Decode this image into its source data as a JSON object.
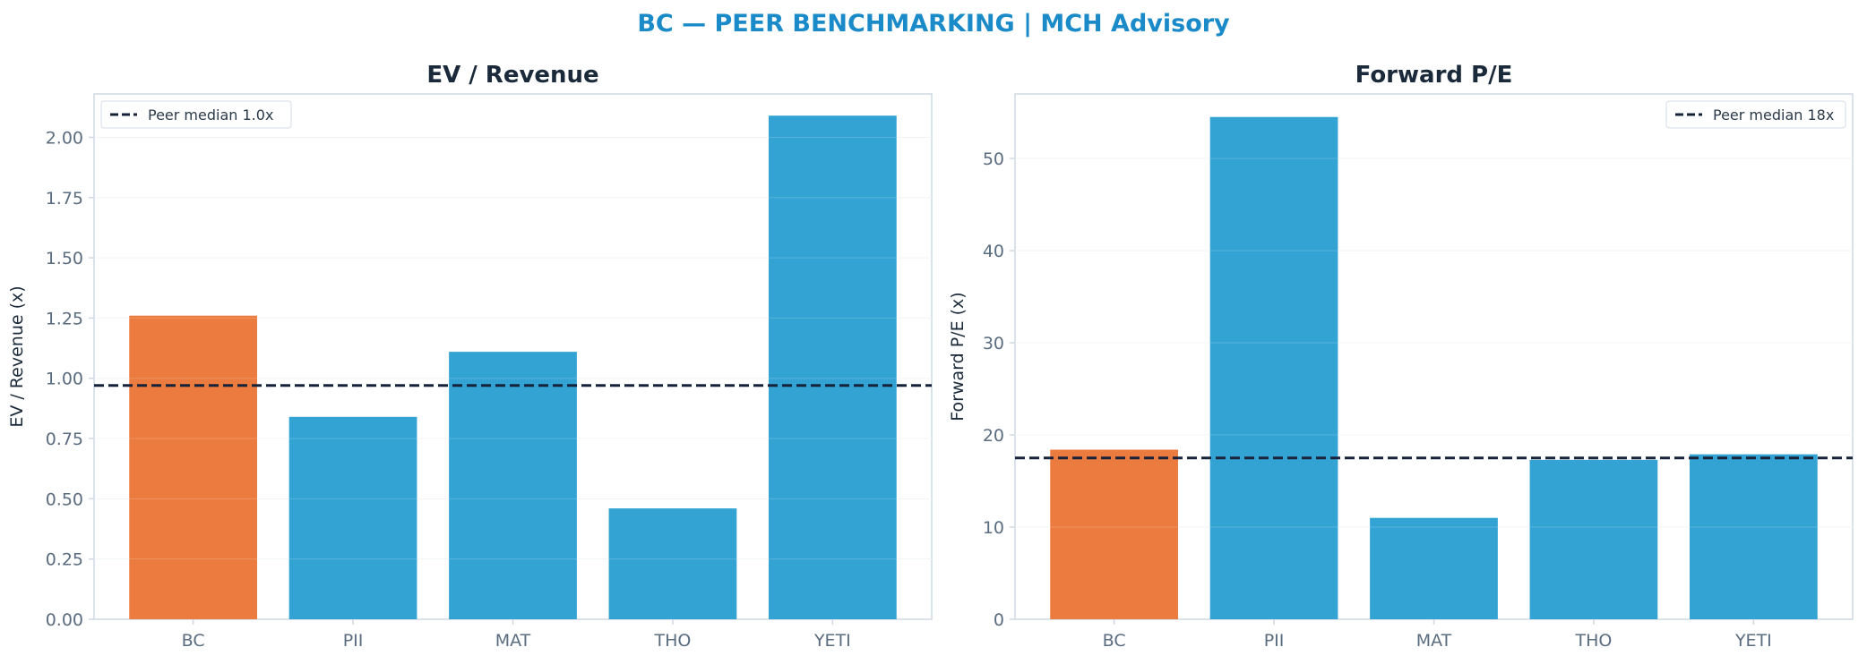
{
  "title": "BC — PEER BENCHMARKING | MCH Advisory",
  "colors": {
    "title": "#1a8bc8",
    "highlight": "#ec7b3f",
    "peer": "#33a3d4",
    "median_line": "#17233a",
    "axes": "#cfd8e2",
    "text": "#1b2a3a",
    "tick": "#5a6c80"
  },
  "chart_data": [
    {
      "type": "bar",
      "title": "EV / Revenue",
      "xlabel": "",
      "ylabel": "EV / Revenue (x)",
      "categories": [
        "BC",
        "PII",
        "MAT",
        "THO",
        "YETI"
      ],
      "values": [
        1.26,
        0.84,
        1.11,
        0.46,
        2.09
      ],
      "highlight_category": "BC",
      "ylim": [
        0,
        2.18
      ],
      "yticks": [
        "0.00",
        "0.25",
        "0.50",
        "0.75",
        "1.00",
        "1.25",
        "1.50",
        "1.75",
        "2.00"
      ],
      "ytick_values": [
        0,
        0.25,
        0.5,
        0.75,
        1.0,
        1.25,
        1.5,
        1.75,
        2.0
      ],
      "reference_line": {
        "label": "Peer median 1.0x",
        "value": 0.97,
        "style": "dashed"
      },
      "legend_position": "top-left",
      "grid": true
    },
    {
      "type": "bar",
      "title": "Forward P/E",
      "xlabel": "",
      "ylabel": "Forward P/E (x)",
      "categories": [
        "BC",
        "PII",
        "MAT",
        "THO",
        "YETI"
      ],
      "values": [
        18.4,
        54.5,
        11.0,
        17.3,
        17.9
      ],
      "highlight_category": "BC",
      "ylim": [
        0,
        57
      ],
      "yticks": [
        "0",
        "10",
        "20",
        "30",
        "40",
        "50"
      ],
      "ytick_values": [
        0,
        10,
        20,
        30,
        40,
        50
      ],
      "reference_line": {
        "label": "Peer median 18x",
        "value": 17.5,
        "style": "dashed"
      },
      "legend_position": "top-right",
      "grid": true
    }
  ]
}
